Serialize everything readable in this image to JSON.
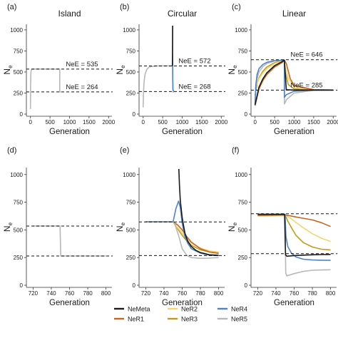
{
  "colors": {
    "NeMeta": "#1a1a1a",
    "NeR1": "#c8641e",
    "NeR2": "#f2d66f",
    "NeR3": "#c29a1c",
    "NeR4": "#4f84c4",
    "NeR5": "#b8b8b8"
  },
  "legend": {
    "items": [
      {
        "key": "NeMeta",
        "label": "NeMeta"
      },
      {
        "key": "NeR1",
        "label": "NeR1"
      },
      {
        "key": "NeR2",
        "label": "NeR2"
      },
      {
        "key": "NeR3",
        "label": "NeR3"
      },
      {
        "key": "NeR4",
        "label": "NeR4"
      },
      {
        "key": "NeR5",
        "label": "NeR5"
      }
    ]
  },
  "chart_data": [
    {
      "panel": "(a)",
      "title": "Island",
      "type": "line",
      "xlabel": "Generation",
      "ylabel": "N",
      "ylabel_sub": "e",
      "xlim": [
        -50,
        2050
      ],
      "ylim": [
        0,
        1050
      ],
      "xticks": [
        0,
        500,
        1000,
        1500,
        2000
      ],
      "yticks": [
        0,
        250,
        500,
        750,
        1000
      ],
      "ref_lines": [
        {
          "y": 535,
          "label": "NeE = 535"
        },
        {
          "y": 264,
          "label": "NeE = 264"
        }
      ],
      "series": [
        {
          "key": "NeR5",
          "x": [
            0,
            3,
            8,
            15,
            30,
            60,
            100,
            200,
            400,
            749,
            750,
            760,
            780
          ],
          "y": [
            60,
            340,
            470,
            515,
            530,
            534,
            535,
            535,
            535,
            535,
            264,
            264,
            264
          ]
        }
      ]
    },
    {
      "panel": "(b)",
      "title": "Circular",
      "type": "line",
      "xlabel": "Generation",
      "ylabel": "N",
      "ylabel_sub": "e",
      "xlim": [
        -50,
        2050
      ],
      "ylim": [
        0,
        1050
      ],
      "xticks": [
        0,
        500,
        1000,
        1500,
        2000
      ],
      "yticks": [
        0,
        250,
        500,
        750,
        1000
      ],
      "ref_lines": [
        {
          "y": 572,
          "label": "NeE = 572"
        },
        {
          "y": 268,
          "label": "NeE = 268"
        }
      ],
      "series": [
        {
          "key": "NeR5",
          "x": [
            0,
            10,
            25,
            50,
            100,
            150,
            200,
            300,
            400,
            500,
            600,
            700,
            749,
            752,
            756,
            760,
            768,
            790
          ],
          "y": [
            80,
            270,
            390,
            475,
            535,
            556,
            565,
            570,
            572,
            572,
            572,
            572,
            572,
            660,
            1050,
            300,
            260,
            262
          ]
        },
        {
          "key": "NeR4",
          "x": [
            748,
            752,
            758,
            765,
            780
          ],
          "y": [
            572,
            700,
            420,
            290,
            268
          ]
        },
        {
          "key": "NeMeta",
          "x": [
            749,
            752,
            756
          ],
          "y": [
            572,
            700,
            1050
          ]
        }
      ]
    },
    {
      "panel": "(c)",
      "title": "Linear",
      "type": "line",
      "xlabel": "Generation",
      "ylabel": "N",
      "ylabel_sub": "e",
      "xlim": [
        -50,
        2050
      ],
      "ylim": [
        0,
        1050
      ],
      "xticks": [
        0,
        500,
        1000,
        1500,
        2000
      ],
      "yticks": [
        0,
        250,
        500,
        750,
        1000
      ],
      "ref_lines": [
        {
          "y": 646,
          "label": "NeE = 646"
        },
        {
          "y": 285,
          "label": "NeE = 285"
        }
      ],
      "series": [
        {
          "key": "NeR5",
          "x": [
            0,
            20,
            50,
            100,
            200,
            300,
            500,
            700,
            749,
            752,
            800,
            1000,
            1500,
            2000
          ],
          "y": [
            120,
            300,
            420,
            500,
            565,
            600,
            630,
            640,
            640,
            120,
            170,
            250,
            282,
            285
          ]
        },
        {
          "key": "NeR4",
          "x": [
            0,
            20,
            50,
            100,
            200,
            300,
            500,
            700,
            749,
            752,
            800,
            1000,
            1500,
            2000
          ],
          "y": [
            120,
            350,
            470,
            540,
            590,
            615,
            635,
            640,
            640,
            200,
            230,
            272,
            284,
            285
          ]
        },
        {
          "key": "NeR3",
          "x": [
            0,
            50,
            100,
            200,
            300,
            500,
            700,
            749,
            770,
            850,
            1000,
            1500,
            2000
          ],
          "y": [
            220,
            360,
            430,
            510,
            560,
            610,
            635,
            640,
            500,
            350,
            300,
            286,
            285
          ]
        },
        {
          "key": "NeR2",
          "x": [
            0,
            100,
            200,
            300,
            500,
            700,
            749,
            770,
            850,
            1000,
            1500,
            2000
          ],
          "y": [
            300,
            420,
            490,
            540,
            600,
            632,
            640,
            560,
            420,
            330,
            290,
            285
          ]
        },
        {
          "key": "NeR1",
          "x": [
            0,
            100,
            200,
            300,
            500,
            700,
            749,
            800,
            900,
            1000,
            1500,
            2000
          ],
          "y": [
            100,
            300,
            400,
            470,
            560,
            615,
            640,
            600,
            420,
            340,
            290,
            285
          ]
        },
        {
          "key": "NeMeta",
          "x": [
            0,
            100,
            200,
            300,
            500,
            700,
            749,
            800,
            1000,
            2000
          ],
          "y": [
            110,
            320,
            420,
            490,
            575,
            625,
            640,
            290,
            285,
            285
          ]
        }
      ]
    },
    {
      "panel": "(d)",
      "title": "",
      "type": "line",
      "xlabel": "Generation",
      "ylabel": "N",
      "ylabel_sub": "e",
      "xlim": [
        715,
        805
      ],
      "ylim": [
        0,
        1050
      ],
      "xticks": [
        720,
        740,
        760,
        780,
        800
      ],
      "yticks": [
        0,
        250,
        500,
        750,
        1000
      ],
      "ref_lines": [
        {
          "y": 535,
          "label": ""
        },
        {
          "y": 264,
          "label": ""
        }
      ],
      "series": [
        {
          "key": "NeR5",
          "x": [
            720,
            749.6,
            750.4,
            800
          ],
          "y": [
            535,
            535,
            264,
            264
          ]
        }
      ]
    },
    {
      "panel": "(e)",
      "title": "",
      "type": "line",
      "xlabel": "Generation",
      "ylabel": "N",
      "ylabel_sub": "e",
      "xlim": [
        715,
        805
      ],
      "ylim": [
        0,
        1050
      ],
      "xticks": [
        720,
        740,
        760,
        780,
        800
      ],
      "yticks": [
        0,
        250,
        500,
        750,
        1000
      ],
      "ref_lines": [
        {
          "y": 572,
          "label": ""
        },
        {
          "y": 268,
          "label": ""
        }
      ],
      "series": [
        {
          "key": "NeR3",
          "x": [
            720,
            750,
            755,
            760,
            765,
            770,
            780,
            790,
            800
          ],
          "y": [
            572,
            572,
            510,
            450,
            400,
            360,
            320,
            300,
            292
          ]
        },
        {
          "key": "NeR2",
          "x": [
            720,
            750,
            755,
            760,
            765,
            770,
            780,
            790,
            800
          ],
          "y": [
            572,
            572,
            520,
            470,
            420,
            380,
            335,
            310,
            300
          ]
        },
        {
          "key": "NeR1",
          "x": [
            720,
            750,
            755,
            760,
            765,
            770,
            780,
            790,
            800
          ],
          "y": [
            572,
            572,
            545,
            500,
            440,
            390,
            330,
            300,
            288
          ]
        },
        {
          "key": "NeR5",
          "x": [
            720,
            750,
            752,
            756,
            760,
            765,
            770,
            780,
            790,
            800
          ],
          "y": [
            572,
            572,
            550,
            450,
            330,
            270,
            250,
            243,
            245,
            250
          ]
        },
        {
          "key": "NeR4",
          "x": [
            720,
            750,
            753,
            756,
            758,
            760,
            763,
            766,
            770,
            780,
            790,
            800
          ],
          "y": [
            572,
            572,
            690,
            760,
            700,
            560,
            440,
            380,
            330,
            290,
            272,
            268
          ]
        },
        {
          "key": "NeMeta",
          "x": [
            756.3,
            757,
            758,
            760,
            763,
            766,
            770,
            775,
            780,
            790,
            800
          ],
          "y": [
            1050,
            900,
            760,
            610,
            470,
            400,
            350,
            315,
            295,
            275,
            270
          ]
        }
      ]
    },
    {
      "panel": "(f)",
      "title": "",
      "type": "line",
      "xlabel": "Generation",
      "ylabel": "N",
      "ylabel_sub": "e",
      "xlim": [
        715,
        805
      ],
      "ylim": [
        0,
        1050
      ],
      "xticks": [
        720,
        740,
        760,
        780,
        800
      ],
      "yticks": [
        0,
        250,
        500,
        750,
        1000
      ],
      "ref_lines": [
        {
          "y": 646,
          "label": ""
        },
        {
          "y": 285,
          "label": ""
        }
      ],
      "series": [
        {
          "key": "NeR1",
          "x": [
            720,
            750,
            755,
            760,
            770,
            780,
            790,
            800
          ],
          "y": [
            630,
            635,
            628,
            620,
            605,
            590,
            565,
            530
          ]
        },
        {
          "key": "NeR2",
          "x": [
            720,
            750,
            755,
            760,
            770,
            780,
            790,
            800
          ],
          "y": [
            625,
            632,
            610,
            580,
            520,
            465,
            425,
            395
          ]
        },
        {
          "key": "NeR3",
          "x": [
            720,
            750,
            753,
            757,
            762,
            770,
            780,
            790,
            800
          ],
          "y": [
            635,
            638,
            580,
            520,
            450,
            385,
            345,
            325,
            318
          ]
        },
        {
          "key": "NeR4",
          "x": [
            720,
            750,
            751,
            753,
            757,
            762,
            770,
            780,
            790,
            800
          ],
          "y": [
            640,
            640,
            440,
            350,
            290,
            255,
            235,
            228,
            226,
            225
          ]
        },
        {
          "key": "NeR5",
          "x": [
            720,
            750,
            750.8,
            752,
            760,
            770,
            780,
            790,
            800
          ],
          "y": [
            640,
            640,
            110,
            85,
            105,
            125,
            135,
            138,
            140
          ]
        },
        {
          "key": "NeMeta",
          "x": [
            720,
            749.5,
            750.5,
            752,
            760,
            770,
            780,
            790,
            800
          ],
          "y": [
            640,
            640,
            275,
            262,
            268,
            272,
            275,
            277,
            278
          ]
        }
      ]
    }
  ]
}
